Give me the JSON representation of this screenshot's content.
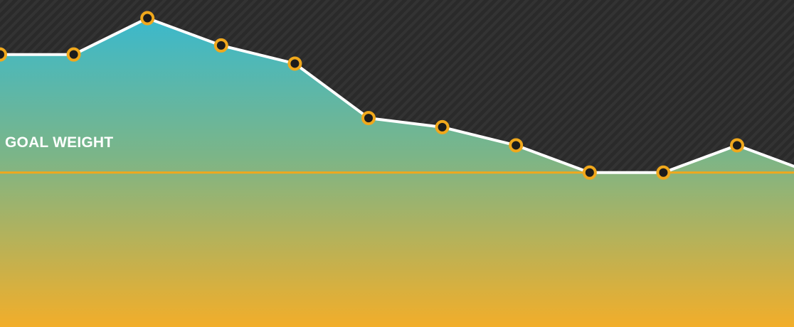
{
  "chart_data": {
    "type": "area",
    "x": [
      1,
      2,
      3,
      4,
      5,
      6,
      7,
      8,
      9,
      10,
      11,
      12
    ],
    "series": [
      {
        "values": [
          77,
          77,
          81,
          78,
          76,
          70,
          69,
          67,
          64,
          64,
          67,
          64
        ]
      }
    ],
    "goal": {
      "label": "GOAL WEIGHT",
      "value": 64
    },
    "ylim": [
      47,
      83
    ],
    "grid": false,
    "colors": {
      "background": "#2a2a2a",
      "stripe": "#333333",
      "line": "#ffffff",
      "marker_ring": "#f0a81c",
      "marker_center": "#1c1c1c",
      "goal_line": "#f0a81c",
      "fill_top": "#3bb9cc",
      "fill_mid": "#7cb587",
      "fill_bottom": "#f2ae2a"
    }
  }
}
